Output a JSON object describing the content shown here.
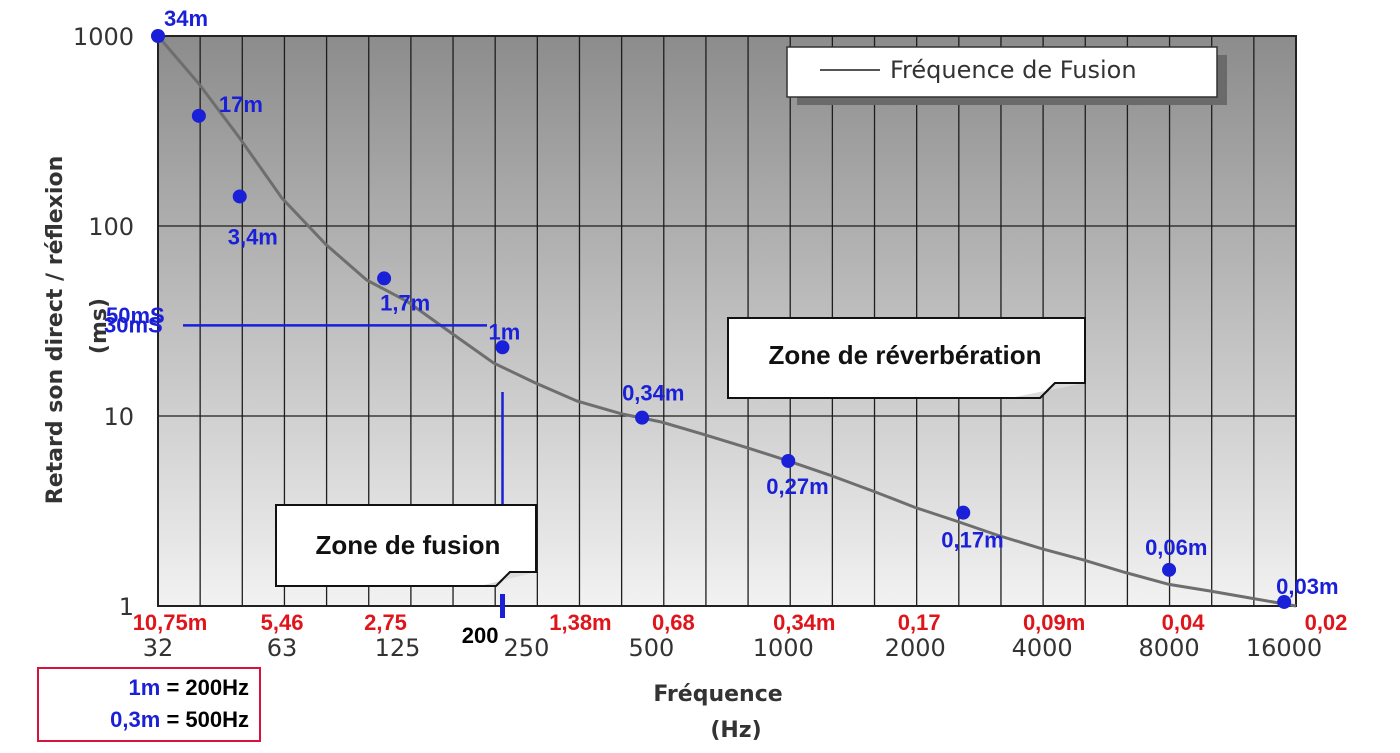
{
  "chart_data": {
    "type": "line",
    "title": "",
    "xlabel": "Fréquence",
    "xunit": "(Hz)",
    "ylabel": "Retard son direct / réflexion",
    "yunit": "(ms)",
    "x_scale": "log2",
    "y_scale": "log10",
    "xlim": [
      32,
      16000
    ],
    "ylim": [
      1,
      1000
    ],
    "x_ticks": [
      "32",
      "63",
      "125",
      "250",
      "500",
      "1000",
      "2000",
      "4000",
      "8000",
      "16000"
    ],
    "y_ticks": [
      "1000",
      "100",
      "10",
      "1"
    ],
    "grid": true,
    "legend": {
      "position": "top-right",
      "entries": [
        "Fréquence de Fusion"
      ]
    },
    "series": [
      {
        "name": "Fréquence de Fusion",
        "x": [
          32,
          40,
          50,
          63,
          80,
          100,
          125,
          160,
          200,
          250,
          315,
          400,
          500,
          630,
          800,
          1000,
          1250,
          1600,
          2000,
          2500,
          3150,
          4000,
          5000,
          6300,
          8000,
          10000,
          12500,
          16000
        ],
        "y": [
          1000,
          560,
          290,
          140,
          80,
          52,
          40,
          27,
          19,
          15,
          12,
          10.3,
          9.3,
          8,
          6.8,
          5.8,
          4.9,
          4.0,
          3.3,
          2.8,
          2.35,
          2.0,
          1.75,
          1.5,
          1.3,
          1.2,
          1.1,
          1.0
        ]
      }
    ],
    "markers": [
      {
        "x": 32,
        "y": 1000,
        "label": "34m"
      },
      {
        "x": 40,
        "y": 380,
        "label": "17m"
      },
      {
        "x": 50,
        "y": 143,
        "label": "3,4m"
      },
      {
        "x": 110,
        "y": 53,
        "label": "1,7m"
      },
      {
        "x": 210,
        "y": 23,
        "label": "1m"
      },
      {
        "x": 450,
        "y": 9.8,
        "label": "0,34m"
      },
      {
        "x": 1000,
        "y": 5.8,
        "label": "0,27m"
      },
      {
        "x": 2600,
        "y": 3.1,
        "label": "0,17m"
      },
      {
        "x": 8000,
        "y": 1.55,
        "label": "0,06m"
      },
      {
        "x": 15000,
        "y": 1.05,
        "label": "0,03m"
      }
    ],
    "wavelength_labels": [
      {
        "x": 32,
        "label": "10,75m"
      },
      {
        "x": 63,
        "label": "5,46"
      },
      {
        "x": 125,
        "label": "2,75"
      },
      {
        "x": 250,
        "label": "1,38m"
      },
      {
        "x": 500,
        "label": "0,68"
      },
      {
        "x": 1000,
        "label": "0,34m"
      },
      {
        "x": 2000,
        "label": "0,17"
      },
      {
        "x": 4000,
        "label": "0,09m"
      },
      {
        "x": 8000,
        "label": "0,04"
      },
      {
        "x": 16000,
        "label": "0,02"
      }
    ],
    "annotations": {
      "y_marks": [
        {
          "y": 50,
          "label": "50mS"
        },
        {
          "y": 30,
          "label": "30mS"
        }
      ],
      "x_mark": {
        "x": 210,
        "label": "200"
      },
      "zones": [
        "Zone de réverbération",
        "Zone de fusion"
      ]
    }
  },
  "info_box": {
    "line1_blue": "1m",
    "line1_rest": " = 200Hz",
    "line2_blue": "0,3m",
    "line2_rest": " = 500Hz"
  },
  "colors": {
    "curve": "#6e6e6e",
    "marker": "#1a1fd8",
    "annotation_blue": "#1a1fd8",
    "wavelength_red": "#e0141b",
    "info_border": "#d4143c"
  }
}
